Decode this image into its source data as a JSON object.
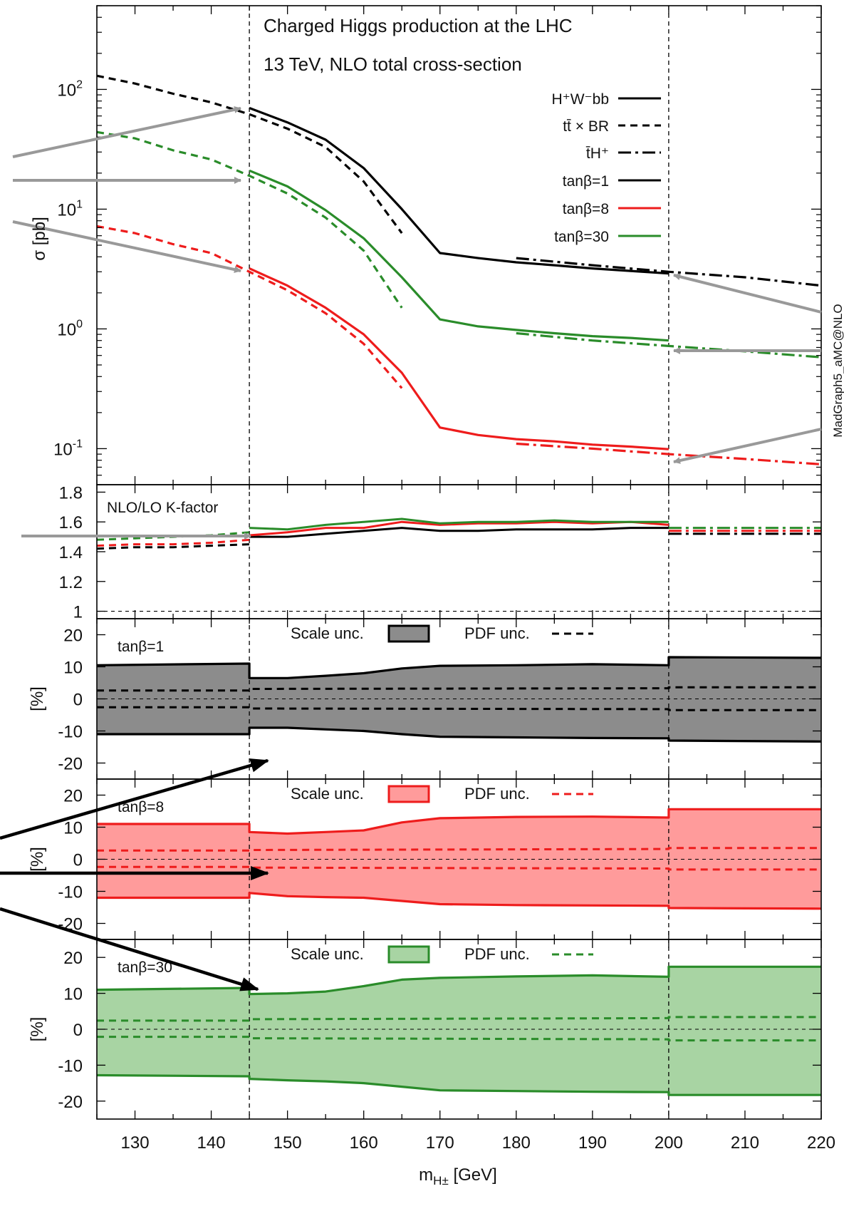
{
  "title": "Charged Higgs production at the LHC",
  "subtitle": "13 TeV, NLO total cross-section",
  "watermark": "MadGraph5_aMC@NLO",
  "colors": {
    "tb1": "#000000",
    "tb8": "#ee1c1c",
    "tb30": "#2a8c2a",
    "arrow_gray": "#999999",
    "arrow_black": "#000000"
  },
  "legend": {
    "proc1": "H⁺W⁻bb",
    "proc2": "tt̄ × BR",
    "proc3": "t̄H⁺",
    "tb1": "tanβ=1",
    "tb8": "tanβ=8",
    "tb30": "tanβ=30"
  },
  "axes": {
    "xlabel": "m",
    "xlabel_sub": "H±",
    "xlabel_unit": " [GeV]",
    "ylabel_top": "σ [pb]",
    "ylabel_unc": "[%]",
    "xticks": [
      "130",
      "140",
      "150",
      "160",
      "170",
      "180",
      "190",
      "200",
      "210",
      "220"
    ],
    "yticks_top": [
      "10",
      "10",
      "10",
      "10"
    ],
    "yticks_top_exp": [
      "2",
      "1",
      "0",
      "-1"
    ],
    "yticks_k": [
      "1.8",
      "1.6",
      "1.4",
      "1.2",
      "1"
    ],
    "yticks_unc": [
      "20",
      "10",
      "0",
      "-10",
      "-20"
    ]
  },
  "kfactor_label": "NLO/LO K-factor",
  "unc_panels": [
    {
      "label": "tanβ=1",
      "scale": "Scale unc.",
      "pdf": "PDF unc."
    },
    {
      "label": "tanβ=8",
      "scale": "Scale unc.",
      "pdf": "PDF unc."
    },
    {
      "label": "tanβ=30",
      "scale": "Scale unc.",
      "pdf": "PDF unc."
    }
  ],
  "chart_data": {
    "type": "line",
    "title": "Charged Higgs production at the LHC",
    "subtitle": "13 TeV, NLO total cross-section",
    "xlabel": "m_H± [GeV]",
    "xlim": [
      125,
      220
    ],
    "panels": [
      {
        "name": "cross-section",
        "ylabel": "σ [pb]",
        "yscale": "log",
        "ylim": [
          0.05,
          500
        ],
        "series": [
          {
            "name": "H⁺W⁻bb tanβ=1",
            "x": [
              145,
              150,
              155,
              160,
              165,
              170,
              175,
              180,
              185,
              190,
              195,
              200
            ],
            "y": [
              70,
              53,
              38,
              22,
              10,
              4.3,
              3.9,
              3.6,
              3.4,
              3.2,
              3.05,
              2.9
            ]
          },
          {
            "name": "tt̄ × BR tanβ=1",
            "x": [
              125,
              130,
              135,
              140,
              145,
              150,
              155,
              160,
              165
            ],
            "y": [
              130,
              112,
              92,
              78,
              62,
              47,
              33,
              17,
              6.3
            ]
          },
          {
            "name": "t̄H⁺ tanβ=1",
            "x": [
              180,
              190,
              200,
              210,
              220
            ],
            "y": [
              3.9,
              3.4,
              3.0,
              2.7,
              2.3
            ]
          },
          {
            "name": "H⁺W⁻bb tanβ=8",
            "x": [
              145,
              150,
              155,
              160,
              165,
              170,
              175,
              180,
              185,
              190,
              195,
              200
            ],
            "y": [
              3.2,
              2.3,
              1.5,
              0.9,
              0.43,
              0.15,
              0.13,
              0.12,
              0.115,
              0.108,
              0.104,
              0.099
            ]
          },
          {
            "name": "tt̄ × BR tanβ=8",
            "x": [
              125,
              130,
              135,
              140,
              145,
              150,
              155,
              160,
              165
            ],
            "y": [
              7.2,
              6.3,
              5.1,
              4.3,
              3.0,
              2.1,
              1.35,
              0.75,
              0.32
            ]
          },
          {
            "name": "t̄H⁺ tanβ=8",
            "x": [
              180,
              190,
              200,
              210,
              220
            ],
            "y": [
              0.11,
              0.1,
              0.09,
              0.082,
              0.074
            ]
          },
          {
            "name": "H⁺W⁻bb tanβ=30",
            "x": [
              145,
              150,
              155,
              160,
              165,
              170,
              175,
              180,
              185,
              190,
              195,
              200
            ],
            "y": [
              21,
              15.5,
              9.8,
              5.7,
              2.7,
              1.2,
              1.05,
              0.98,
              0.92,
              0.87,
              0.84,
              0.8
            ]
          },
          {
            "name": "tt̄ × BR tanβ=30",
            "x": [
              125,
              130,
              135,
              140,
              145,
              150,
              155,
              160,
              165
            ],
            "y": [
              44,
              39,
              31,
              26,
              19,
              13.5,
              8.5,
              4.5,
              1.5
            ]
          },
          {
            "name": "t̄H⁺ tanβ=30",
            "x": [
              180,
              190,
              200,
              210,
              220
            ],
            "y": [
              0.92,
              0.8,
              0.72,
              0.65,
              0.58
            ]
          }
        ]
      },
      {
        "name": "k-factor",
        "ylabel": "",
        "ylim": [
          0.95,
          1.85
        ],
        "series": [
          {
            "name": "tanβ=1 tt̄",
            "x": [
              125,
              130,
              135,
              140,
              145
            ],
            "y": [
              1.42,
              1.43,
              1.43,
              1.44,
              1.45
            ]
          },
          {
            "name": "tanβ=8 tt̄",
            "x": [
              125,
              130,
              135,
              140,
              145
            ],
            "y": [
              1.44,
              1.45,
              1.45,
              1.46,
              1.48
            ]
          },
          {
            "name": "tanβ=30 tt̄",
            "x": [
              125,
              130,
              135,
              140,
              145
            ],
            "y": [
              1.48,
              1.49,
              1.5,
              1.51,
              1.53
            ]
          },
          {
            "name": "tanβ=1 H⁺W⁻bb",
            "x": [
              145,
              150,
              155,
              160,
              165,
              170,
              175,
              180,
              185,
              190,
              195,
              200
            ],
            "y": [
              1.5,
              1.5,
              1.52,
              1.54,
              1.56,
              1.54,
              1.54,
              1.55,
              1.55,
              1.55,
              1.56,
              1.56
            ]
          },
          {
            "name": "tanβ=8 H⁺W⁻bb",
            "x": [
              145,
              150,
              155,
              160,
              165,
              170,
              175,
              180,
              185,
              190,
              195,
              200
            ],
            "y": [
              1.51,
              1.53,
              1.56,
              1.56,
              1.6,
              1.58,
              1.59,
              1.59,
              1.6,
              1.59,
              1.6,
              1.58
            ]
          },
          {
            "name": "tanβ=30 H⁺W⁻bb",
            "x": [
              145,
              150,
              155,
              160,
              165,
              170,
              175,
              180,
              185,
              190,
              195,
              200
            ],
            "y": [
              1.56,
              1.55,
              1.58,
              1.6,
              1.62,
              1.59,
              1.6,
              1.6,
              1.61,
              1.6,
              1.6,
              1.6
            ]
          },
          {
            "name": "tanβ=1 t̄H⁺",
            "x": [
              200,
              220
            ],
            "y": [
              1.52,
              1.52
            ]
          },
          {
            "name": "tanβ=8 t̄H⁺",
            "x": [
              200,
              220
            ],
            "y": [
              1.54,
              1.54
            ]
          },
          {
            "name": "tanβ=30 t̄H⁺",
            "x": [
              200,
              220
            ],
            "y": [
              1.56,
              1.56
            ]
          }
        ]
      },
      {
        "name": "uncertainty tanβ=1",
        "ylabel": "[%]",
        "ylim": [
          -25,
          25
        ],
        "scale_band": {
          "x": [
            125,
            145,
            145,
            150,
            155,
            160,
            165,
            170,
            180,
            190,
            200,
            200,
            220
          ],
          "upper": [
            10.5,
            11,
            6.5,
            6.5,
            7.2,
            8,
            9.5,
            10.3,
            10.5,
            10.8,
            10.5,
            13,
            12.8
          ],
          "lower": [
            -11,
            -11,
            -9,
            -9,
            -9.5,
            -10,
            -11,
            -11.8,
            -12,
            -12.2,
            -12.3,
            -13,
            -13.3
          ]
        },
        "pdf_band": {
          "x": [
            125,
            145,
            145,
            200,
            200,
            220
          ],
          "upper": [
            2.6,
            2.6,
            3.1,
            3.3,
            3.6,
            3.6
          ],
          "lower": [
            -2.6,
            -2.6,
            -3.0,
            -3.2,
            -3.5,
            -3.5
          ]
        }
      },
      {
        "name": "uncertainty tanβ=8",
        "ylabel": "[%]",
        "ylim": [
          -25,
          25
        ],
        "scale_band": {
          "x": [
            125,
            145,
            145,
            150,
            155,
            160,
            165,
            170,
            180,
            190,
            200,
            200,
            220
          ],
          "upper": [
            11,
            11,
            8.5,
            8,
            8.5,
            9,
            11.5,
            12.8,
            13.2,
            13.3,
            13,
            15.6,
            15.6
          ],
          "lower": [
            -12,
            -12,
            -10.5,
            -11.5,
            -11.8,
            -12,
            -13,
            -14,
            -14.3,
            -14.4,
            -14.5,
            -15.2,
            -15.4
          ]
        },
        "pdf_band": {
          "x": [
            125,
            145,
            145,
            200,
            200,
            220
          ],
          "upper": [
            2.7,
            2.7,
            2.9,
            3.2,
            3.5,
            3.5
          ],
          "lower": [
            -2.4,
            -2.4,
            -2.6,
            -2.9,
            -3.2,
            -3.2
          ]
        }
      },
      {
        "name": "uncertainty tanβ=30",
        "ylabel": "[%]",
        "ylim": [
          -25,
          25
        ],
        "scale_band": {
          "x": [
            125,
            145,
            145,
            150,
            155,
            160,
            165,
            170,
            180,
            190,
            200,
            200,
            220
          ],
          "upper": [
            11,
            11.5,
            9.8,
            10,
            10.5,
            12,
            13.8,
            14.3,
            14.7,
            15,
            14.6,
            17.4,
            17.4
          ],
          "lower": [
            -12.8,
            -13.1,
            -13.8,
            -14.2,
            -14.5,
            -15,
            -16,
            -17,
            -17.2,
            -17.4,
            -17.5,
            -18.3,
            -18.3
          ]
        },
        "pdf_band": {
          "x": [
            125,
            145,
            145,
            200,
            200,
            220
          ],
          "upper": [
            2.4,
            2.4,
            2.8,
            3.1,
            3.4,
            3.4
          ],
          "lower": [
            -2.1,
            -2.1,
            -2.5,
            -2.8,
            -3.1,
            -3.1
          ]
        }
      }
    ]
  }
}
